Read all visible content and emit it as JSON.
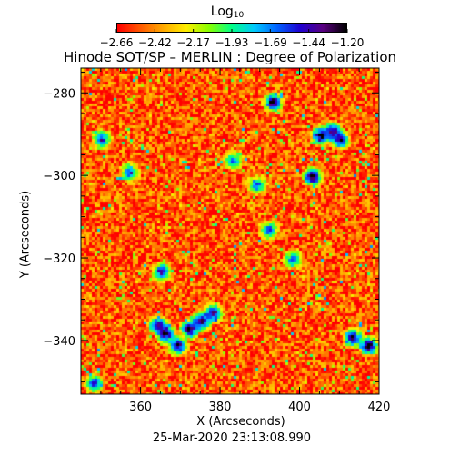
{
  "colorbar": {
    "label": "Log",
    "label_sub": "10",
    "tick_labels": [
      "-2.66",
      "-2.42",
      "-2.17",
      "-1.93",
      "-1.69",
      "-1.44",
      "-1.20"
    ],
    "range": [
      -2.66,
      -1.2
    ],
    "colormap": [
      "#ff0000",
      "#ff5a00",
      "#ffaa00",
      "#ffee00",
      "#88ff00",
      "#00ff88",
      "#00c8ff",
      "#0060ff",
      "#2000d0",
      "#5a0080",
      "#000000"
    ]
  },
  "chart_data": {
    "type": "heatmap",
    "title": "Hinode SOT/SP – MERLIN : Degree of Polarization",
    "xlabel": "X (Arcseconds)",
    "ylabel": "Y (Arcseconds)",
    "xlim": [
      345,
      420
    ],
    "ylim": [
      -353,
      -274
    ],
    "xticks": [
      360,
      380,
      400,
      420
    ],
    "yticks": [
      -280,
      -300,
      -320,
      -340
    ],
    "xtick_labels": [
      "360",
      "380",
      "400",
      "420"
    ],
    "ytick_labels": [
      "−280",
      "−300",
      "−320",
      "−340"
    ],
    "value_range": [
      -2.66,
      -1.2
    ],
    "background_level": -2.52,
    "features": [
      {
        "x": 366,
        "y": -338,
        "value": -1.25
      },
      {
        "x": 364,
        "y": -336,
        "value": -1.35
      },
      {
        "x": 372,
        "y": -337,
        "value": -1.3
      },
      {
        "x": 375,
        "y": -335,
        "value": -1.35
      },
      {
        "x": 378,
        "y": -333,
        "value": -1.4
      },
      {
        "x": 369,
        "y": -341,
        "value": -1.35
      },
      {
        "x": 365,
        "y": -323,
        "value": -1.45
      },
      {
        "x": 405,
        "y": -290,
        "value": -1.3
      },
      {
        "x": 408,
        "y": -289,
        "value": -1.35
      },
      {
        "x": 410,
        "y": -291,
        "value": -1.4
      },
      {
        "x": 393,
        "y": -282,
        "value": -1.3
      },
      {
        "x": 403,
        "y": -300,
        "value": -1.25
      },
      {
        "x": 417,
        "y": -341,
        "value": -1.25
      },
      {
        "x": 413,
        "y": -339,
        "value": -1.4
      },
      {
        "x": 348,
        "y": -350,
        "value": -1.55
      },
      {
        "x": 357,
        "y": -299,
        "value": -1.6
      },
      {
        "x": 389,
        "y": -302,
        "value": -1.65
      },
      {
        "x": 392,
        "y": -313,
        "value": -1.6
      },
      {
        "x": 398,
        "y": -320,
        "value": -1.65
      },
      {
        "x": 383,
        "y": -296,
        "value": -1.7
      },
      {
        "x": 350,
        "y": -291,
        "value": -1.55
      }
    ]
  },
  "timestamp": "25-Mar-2020 23:13:08.990"
}
